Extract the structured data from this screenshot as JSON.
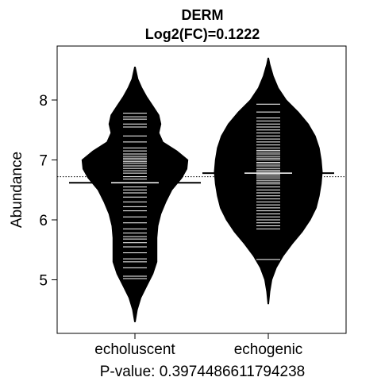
{
  "chart_data": {
    "type": "beanplot",
    "title": "DERM",
    "subtitle": "Log2(FC)=0.1222",
    "ylabel": "Abundance",
    "xlabel": "P-value: 0.3974486611794238",
    "categories": [
      "echoluscent",
      "echogenic"
    ],
    "ylim": [
      4.1,
      8.9
    ],
    "yticks": [
      5,
      6,
      7,
      8
    ],
    "overall_mean": 6.72,
    "groups": [
      {
        "name": "echoluscent",
        "mean": 6.62,
        "density": [
          [
            4.3,
            0.002
          ],
          [
            4.5,
            0.012
          ],
          [
            4.7,
            0.03
          ],
          [
            4.9,
            0.06
          ],
          [
            5.1,
            0.09
          ],
          [
            5.3,
            0.11
          ],
          [
            5.5,
            0.11
          ],
          [
            5.7,
            0.11
          ],
          [
            5.9,
            0.115
          ],
          [
            6.1,
            0.13
          ],
          [
            6.3,
            0.155
          ],
          [
            6.5,
            0.185
          ],
          [
            6.7,
            0.235
          ],
          [
            6.85,
            0.26
          ],
          [
            7.0,
            0.265
          ],
          [
            7.15,
            0.21
          ],
          [
            7.3,
            0.14
          ],
          [
            7.45,
            0.12
          ],
          [
            7.6,
            0.13
          ],
          [
            7.75,
            0.12
          ],
          [
            7.9,
            0.09
          ],
          [
            8.05,
            0.06
          ],
          [
            8.2,
            0.035
          ],
          [
            8.35,
            0.015
          ],
          [
            8.55,
            0.002
          ]
        ],
        "values": [
          5.02,
          5.06,
          5.2,
          5.3,
          5.35,
          5.45,
          5.55,
          5.62,
          5.68,
          5.72,
          5.78,
          5.85,
          5.95,
          6.05,
          6.15,
          6.22,
          6.3,
          6.38,
          6.45,
          6.5,
          6.55,
          6.62,
          6.68,
          6.72,
          6.78,
          6.82,
          6.86,
          6.9,
          6.94,
          6.97,
          7.0,
          7.03,
          7.06,
          7.1,
          7.15,
          7.2,
          7.3,
          7.4,
          7.55,
          7.6,
          7.68,
          7.72,
          7.78
        ]
      },
      {
        "name": "echogenic",
        "mean": 6.78,
        "density": [
          [
            4.6,
            0.002
          ],
          [
            4.8,
            0.008
          ],
          [
            5.0,
            0.018
          ],
          [
            5.2,
            0.04
          ],
          [
            5.4,
            0.075
          ],
          [
            5.6,
            0.12
          ],
          [
            5.8,
            0.17
          ],
          [
            6.0,
            0.21
          ],
          [
            6.2,
            0.24
          ],
          [
            6.4,
            0.255
          ],
          [
            6.6,
            0.265
          ],
          [
            6.8,
            0.27
          ],
          [
            7.0,
            0.265
          ],
          [
            7.2,
            0.255
          ],
          [
            7.4,
            0.235
          ],
          [
            7.6,
            0.2
          ],
          [
            7.8,
            0.15
          ],
          [
            8.0,
            0.09
          ],
          [
            8.2,
            0.05
          ],
          [
            8.4,
            0.025
          ],
          [
            8.6,
            0.008
          ],
          [
            8.7,
            0.002
          ]
        ],
        "values": [
          5.34,
          5.85,
          5.9,
          5.95,
          6.0,
          6.05,
          6.1,
          6.15,
          6.2,
          6.25,
          6.3,
          6.35,
          6.4,
          6.45,
          6.5,
          6.55,
          6.6,
          6.63,
          6.66,
          6.7,
          6.73,
          6.76,
          6.8,
          6.83,
          6.86,
          6.9,
          6.93,
          6.96,
          7.0,
          7.03,
          7.06,
          7.1,
          7.13,
          7.16,
          7.2,
          7.25,
          7.3,
          7.35,
          7.4,
          7.45,
          7.5,
          7.55,
          7.6,
          7.65,
          7.7,
          7.8,
          7.93
        ]
      }
    ],
    "colors": {
      "bean": "#000000",
      "strip": "#ffffff",
      "line": "#000000"
    }
  }
}
